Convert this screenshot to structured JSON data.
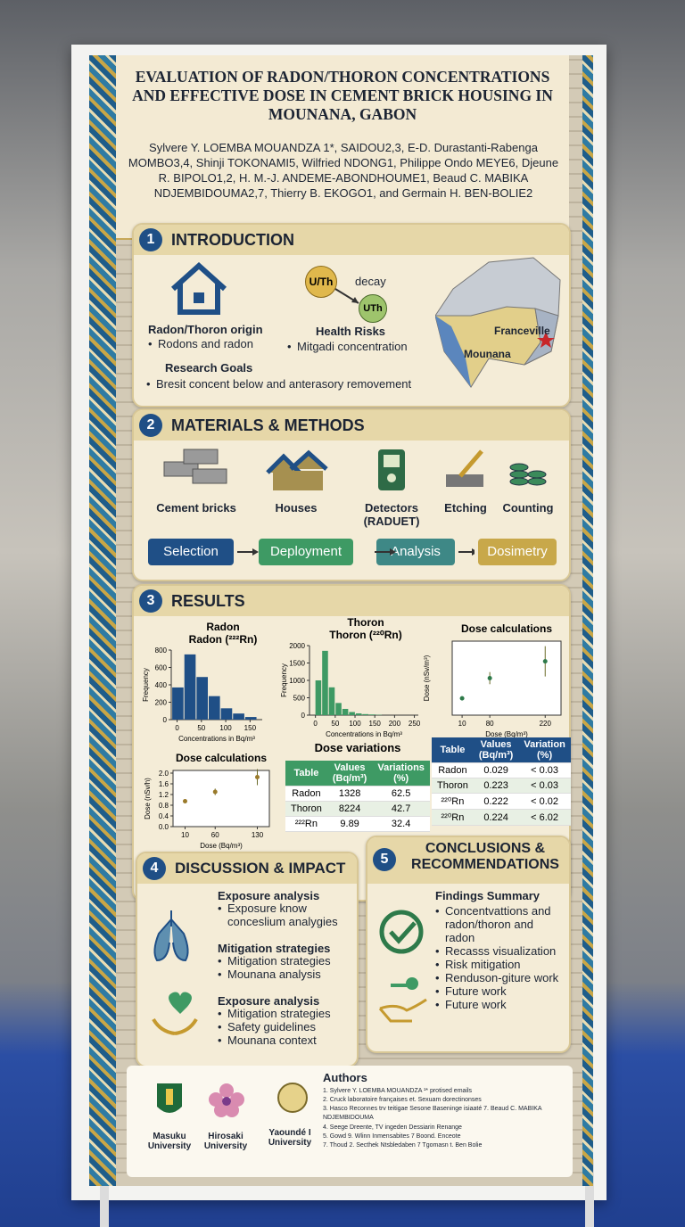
{
  "header": {
    "title": "EVALUATION OF RADON/THORON CONCENTRATIONS AND EFFECTIVE DOSE IN CEMENT BRICK HOUSING IN MOUNANA, GABON",
    "authors": "Sylvere Y. LOEMBA MOUANDZA 1*, SAIDOU2,3, E-D. Durastanti-Rabenga MOMBO3,4, Shinji TOKONAMI5, Wilfried NDONG1, Philippe Ondo MEYE6, Djeune R. BIPOLO1,2, H. M.-J. ANDEME-ABONDHOUME1, Beaud C. MABIKA NDJEMBIDOUMA2,7, Thierry B. EKOGO1, and Germain H. BEN-BOLIE2"
  },
  "intro": {
    "number": "1",
    "heading": "INTRODUCTION",
    "origin_title": "Radon/Thoron origin",
    "origin_bullet": "Rodons and radon",
    "decay_from": "U/Th",
    "decay": "decay",
    "decay_to": "UTh",
    "health_title": "Health Risks",
    "health_bullet": "Mitgadi concentration",
    "goals_title": "Research Goals",
    "goals_bullet": "Bresit concent below and anterasory removement",
    "map_city": "Franceville",
    "map_site": "Mounana"
  },
  "methods": {
    "number": "2",
    "heading": "MATERIALS & METHODS",
    "items": [
      "Cement bricks",
      "Houses",
      "Detectors (RADUET)",
      "Etching",
      "Counting"
    ],
    "steps": [
      "Selection",
      "Deployment",
      "Analysis",
      "Dosimetry"
    ]
  },
  "results": {
    "number": "3",
    "heading": "RESULTS",
    "radon": {
      "title_top": "Radon",
      "title": "Radon (²²²Rn)",
      "ylabel": "Frequency",
      "xlabel": "Concentrations in Bq/m³",
      "bins": [
        -10,
        15,
        40,
        65,
        90,
        115,
        140,
        165
      ],
      "counts": [
        370,
        750,
        490,
        270,
        130,
        70,
        30
      ],
      "xlim": [
        -12,
        175
      ],
      "ylim": [
        0,
        800
      ],
      "xticks": [
        0,
        50,
        100,
        150
      ],
      "yticks": [
        0,
        200,
        400,
        600,
        800
      ]
    },
    "thoron": {
      "title_top": "Thoron",
      "title": "Thoron (²²⁰Rn)",
      "ylabel": "Frequency",
      "xlabel": "Concentrations in Bq/m³",
      "bins": [
        0,
        17,
        34,
        51,
        68,
        85,
        102,
        119,
        136,
        153,
        170
      ],
      "counts": [
        1000,
        1850,
        800,
        350,
        180,
        90,
        50,
        30,
        20,
        10
      ],
      "xlim": [
        -15,
        260
      ],
      "ylim": [
        0,
        2000
      ],
      "xticks": [
        0,
        50,
        100,
        150,
        200,
        250
      ],
      "yticks": [
        0,
        500,
        1000,
        1500,
        2000
      ]
    },
    "dose_top": {
      "title": "Dose calculations",
      "ylabel": "Dose (nSv/m³)",
      "xlabel": "Dose (Bq/m³)",
      "x": [
        10,
        80,
        220
      ],
      "y": [
        0.5,
        1.1,
        1.6
      ],
      "err": [
        0.05,
        0.18,
        0.45
      ],
      "xlim": [
        -15,
        260
      ],
      "ylim": [
        0,
        2.2
      ],
      "xticks": [
        10,
        80,
        220
      ]
    },
    "dose_bottom": {
      "title": "Dose calculations",
      "ylabel": "Dose (nSv/h)",
      "xlabel": "Dose (Bq/m³)",
      "x": [
        10,
        60,
        130
      ],
      "y": [
        0.95,
        1.3,
        1.85
      ],
      "err": [
        0.08,
        0.12,
        0.3
      ],
      "xlim": [
        -10,
        150
      ],
      "ylim": [
        0,
        2.1
      ],
      "xticks": [
        10,
        60,
        130
      ],
      "yticks": [
        {
          "value": 0,
          "label": "0.0"
        },
        0.4,
        0.8,
        1.2,
        1.6,
        {
          "value": 2,
          "label": "2.0"
        }
      ]
    },
    "variations": {
      "title": "Dose variations",
      "header": [
        "Table",
        "Values (Bq/m³)",
        "Variations (%)"
      ],
      "rows": [
        [
          "Radon",
          "1328",
          "62.5"
        ],
        [
          "Thoron",
          "8224",
          "42.7"
        ],
        [
          "²²²Rn",
          "9.89",
          "32.4"
        ]
      ]
    },
    "dose_table": {
      "header": [
        "Table",
        "Values (Bq/m³)",
        "Variation (%)"
      ],
      "rows": [
        [
          "Radon",
          "0.029",
          "< 0.03"
        ],
        [
          "Thoron",
          "0.223",
          "< 0.03"
        ],
        [
          "²²⁰Rn",
          "0.222",
          "< 0.02"
        ],
        [
          "²²⁰Rn",
          "0.224",
          "< 6.02"
        ]
      ]
    }
  },
  "discussion": {
    "number": "4",
    "heading": "DISCUSSION & IMPACT",
    "groups": [
      {
        "title": "Exposure analysis",
        "bullets": [
          "Exposure know conceslium analygies"
        ]
      },
      {
        "title": "Mitigation strategies",
        "bullets": [
          "Mitigation strategies",
          "Mounana analysis"
        ]
      },
      {
        "title": "Exposure analysis",
        "bullets": [
          "Mitigation strategies",
          "Safety guidelines",
          "Mounana context"
        ]
      }
    ]
  },
  "conclusions": {
    "number": "5",
    "heading": "CONCLUSIONS & RECOMMENDATIONS",
    "title": "Findings Summary",
    "bullets": [
      "Concentvattions and radon/thoron and radon",
      "Recasss visualization",
      "Risk mitigation",
      "Renduson-giture work",
      "Future work",
      "Future work"
    ]
  },
  "footer": {
    "logos": [
      "Masuku University",
      "Hirosaki University",
      "Yaoundé I University"
    ],
    "authors_title": "Authors",
    "authors_lines": [
      "1. Sylvere Y. LOEMBA MOUANDZA ¹* protised emails",
      "2. Cruck laboratoire françaises et. Sexuam dorectinonses",
      "3. Hasco Reconnes trv teitigae Sesone Baseninge isiaaté 7. Beaud C. MABIKA NDJEMBIDOUMA",
      "4. Seege Dreente, TV ingeden Dessiarin Renange",
      "5. Gowd 9. Wlinn Inmensabites 7 Boond. Enceote",
      "7. Thoud 2. Secthek Ntsbledaben 7 Tgomasn t. Ben Bolie"
    ]
  }
}
